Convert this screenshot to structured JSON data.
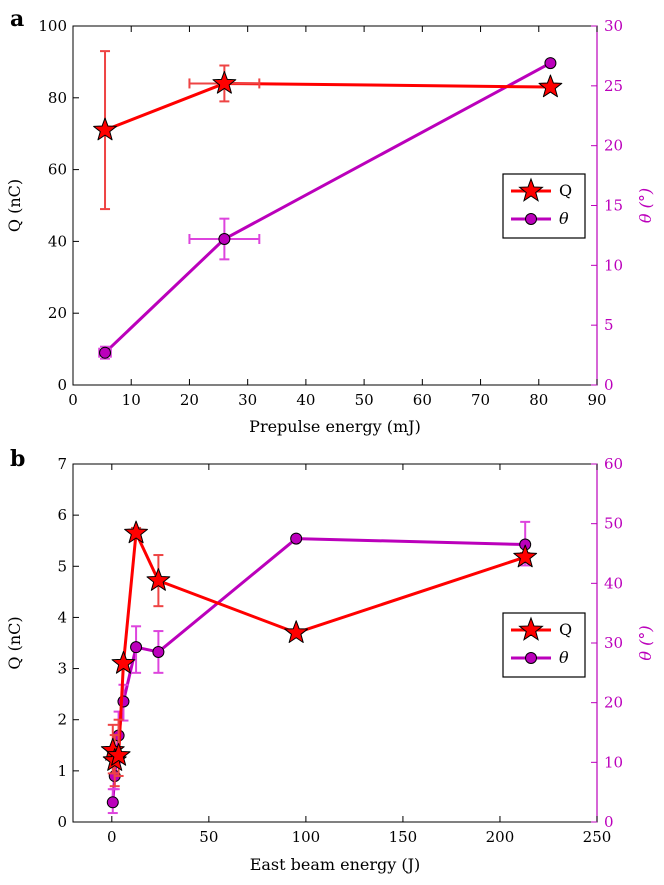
{
  "chart_data": [
    {
      "type": "line",
      "panel_label": "a",
      "xlabel": "Prepulse energy (mJ)",
      "ylabel": "Q (nC)",
      "y2label": "θ (°)",
      "xlim": [
        0,
        90
      ],
      "ylim": [
        0,
        100
      ],
      "y2lim": [
        0,
        30
      ],
      "xticks": [
        0,
        10,
        20,
        30,
        40,
        50,
        60,
        70,
        80,
        90
      ],
      "yticks": [
        0,
        20,
        40,
        60,
        80,
        100
      ],
      "y2ticks": [
        0,
        5,
        10,
        15,
        20,
        25,
        30
      ],
      "legend_position": "right",
      "series": [
        {
          "name": "Q",
          "axis": "left",
          "marker": "star",
          "color": "#ff0000",
          "errcolor": "#ee4444",
          "points": [
            {
              "x": 5.5,
              "y": 71,
              "yerr": [
                49,
                93
              ]
            },
            {
              "x": 26,
              "y": 84,
              "yerr": [
                79,
                89
              ],
              "xerr": [
                20,
                32
              ]
            },
            {
              "x": 82,
              "y": 83
            }
          ]
        },
        {
          "name": "θ",
          "axis": "right",
          "marker": "circle",
          "color": "#bb00bb",
          "errcolor": "#dd44dd",
          "points": [
            {
              "x": 5.5,
              "y": 2.7,
              "yerr": [
                2.2,
                3.2
              ],
              "xerr": [
                4.5,
                6.5
              ]
            },
            {
              "x": 26,
              "y": 12.2,
              "yerr": [
                10.5,
                13.9
              ],
              "xerr": [
                20,
                32
              ]
            },
            {
              "x": 82,
              "y": 26.9
            }
          ]
        }
      ]
    },
    {
      "type": "line",
      "panel_label": "b",
      "xlabel": "East beam energy (J)",
      "ylabel": "Q (nC)",
      "y2label": "θ (°)",
      "xlim": [
        -20,
        250
      ],
      "ylim": [
        0,
        7
      ],
      "y2lim": [
        0,
        60
      ],
      "xticks": [
        0,
        50,
        100,
        150,
        200,
        250
      ],
      "yticks": [
        0,
        1,
        2,
        3,
        4,
        5,
        6,
        7
      ],
      "y2ticks": [
        0,
        10,
        20,
        30,
        40,
        50,
        60
      ],
      "legend_position": "right",
      "series": [
        {
          "name": "Q",
          "axis": "left",
          "marker": "star",
          "color": "#ff0000",
          "errcolor": "#ee4444",
          "points": [
            {
              "x": 0.5,
              "y": 1.4,
              "yerr": [
                0.95,
                1.9
              ]
            },
            {
              "x": 1.5,
              "y": 1.2,
              "yerr": [
                0.7,
                1.7
              ]
            },
            {
              "x": 3.5,
              "y": 1.3,
              "yerr": [
                0.9,
                2.0
              ]
            },
            {
              "x": 6,
              "y": 3.1
            },
            {
              "x": 12.5,
              "y": 5.65,
              "yerr": [
                5.55,
                5.75
              ]
            },
            {
              "x": 24,
              "y": 4.72,
              "yerr": [
                4.22,
                5.22
              ]
            },
            {
              "x": 95,
              "y": 3.7
            },
            {
              "x": 213,
              "y": 5.18,
              "yerr": [
                5.1,
                5.26
              ]
            }
          ]
        },
        {
          "name": "θ",
          "axis": "right",
          "marker": "circle",
          "color": "#bb00bb",
          "errcolor": "#dd44dd",
          "points": [
            {
              "x": 0.5,
              "y": 3.3,
              "yerr": [
                1.5,
                5.5
              ]
            },
            {
              "x": 1.5,
              "y": 7.7,
              "yerr": [
                5.5,
                10
              ]
            },
            {
              "x": 3.5,
              "y": 14.5,
              "yerr": [
                10,
                18.5
              ]
            },
            {
              "x": 6,
              "y": 20.2,
              "yerr": [
                17,
                23
              ]
            },
            {
              "x": 12.5,
              "y": 29.3,
              "yerr": [
                25,
                32.8
              ]
            },
            {
              "x": 24,
              "y": 28.5,
              "yerr": [
                25,
                32
              ]
            },
            {
              "x": 95,
              "y": 47.5
            },
            {
              "x": 213,
              "y": 46.5,
              "yerr": [
                43,
                50.3
              ]
            }
          ]
        }
      ]
    }
  ]
}
